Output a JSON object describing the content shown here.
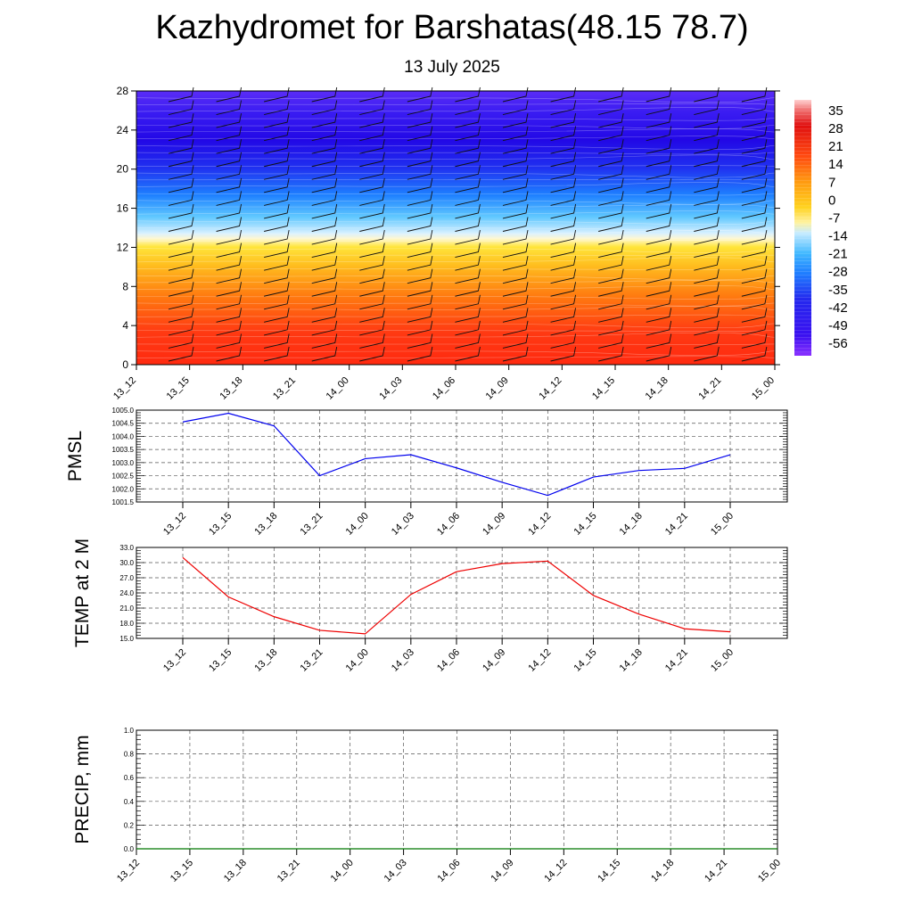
{
  "header": {
    "title": "Kazhydromet for Barshatas(48.15 78.7)",
    "subtitle": "13 July 2025"
  },
  "chart_data": [
    {
      "type": "heatmap",
      "name": "temperature-cross-section",
      "y_ticks": [
        0,
        4,
        8,
        12,
        16,
        20,
        24,
        28
      ],
      "ylim": [
        0,
        28
      ],
      "x_ticks": [
        "13_12",
        "13_15",
        "13_18",
        "13_21",
        "14_00",
        "14_03",
        "14_06",
        "14_09",
        "14_12",
        "14_15",
        "14_18",
        "14_21",
        "15_00"
      ],
      "colorbar_ticks": [
        35,
        28,
        21,
        14,
        7,
        0,
        -7,
        -14,
        -21,
        -28,
        -35,
        -42,
        -49,
        -56
      ],
      "value_range": [
        -60,
        38
      ],
      "colors": {
        "high": "#ff3a1a",
        "mid_yellow": "#ffe033",
        "zero_white": "#f2f6ff",
        "cyan": "#2aa8ff",
        "low_blue": "#2010f0",
        "min_purple": "#8a30ff"
      },
      "wind_barbs": true
    },
    {
      "type": "line",
      "ylabel": "PMSL",
      "ylim": [
        1001.5,
        1005.0
      ],
      "y_ticks": [
        "1005.0",
        "1004.5",
        "1004.0",
        "1003.5",
        "1003.0",
        "1002.5",
        "1002.0",
        "1001.5"
      ],
      "x": [
        "13_12",
        "13_15",
        "13_18",
        "13_21",
        "14_00",
        "14_03",
        "14_06",
        "14_09",
        "14_12",
        "14_15",
        "14_18",
        "14_21",
        "15_00"
      ],
      "values": [
        1004.55,
        1004.88,
        1004.4,
        1002.5,
        1003.15,
        1003.3,
        1002.8,
        1002.25,
        1001.75,
        1002.45,
        1002.7,
        1002.78,
        1003.3
      ],
      "color": "#0000ee",
      "grid": true
    },
    {
      "type": "line",
      "ylabel": "TEMP at 2 M",
      "ylim": [
        15.0,
        33.0
      ],
      "y_ticks": [
        "33.0",
        "30.0",
        "27.0",
        "24.0",
        "21.0",
        "18.0",
        "15.0"
      ],
      "x": [
        "13_12",
        "13_15",
        "13_18",
        "13_21",
        "14_00",
        "14_03",
        "14_06",
        "14_09",
        "14_12",
        "14_15",
        "14_18",
        "14_21",
        "15_00"
      ],
      "values": [
        31.0,
        23.2,
        19.3,
        16.6,
        15.9,
        23.7,
        28.2,
        29.8,
        30.3,
        23.5,
        19.8,
        16.9,
        16.3
      ],
      "color": "#ee0000",
      "grid": true
    },
    {
      "type": "line",
      "ylabel": "PRECIP, mm",
      "ylim": [
        0.0,
        1.0
      ],
      "y_ticks": [
        "1.0",
        "0.8",
        "0.6",
        "0.4",
        "0.2",
        "0.0"
      ],
      "x": [
        "13_12",
        "13_15",
        "13_18",
        "13_21",
        "14_00",
        "14_03",
        "14_06",
        "14_09",
        "14_12",
        "14_15",
        "14_18",
        "14_21",
        "15_00"
      ],
      "values": [
        0,
        0,
        0,
        0,
        0,
        0,
        0,
        0,
        0,
        0,
        0,
        0,
        0
      ],
      "color": "#007700",
      "grid": true
    }
  ]
}
